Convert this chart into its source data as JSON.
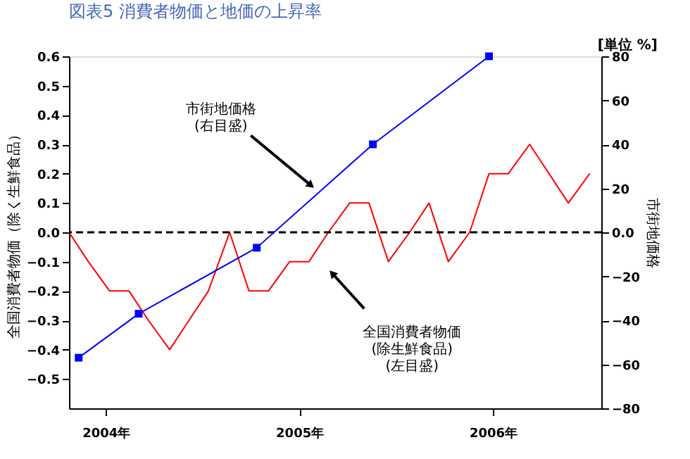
{
  "chart_data": {
    "type": "line",
    "title": "図表5 消費者物価と地価の上昇率",
    "ylabel": "全国消費者物価（除く生鮮食品）",
    "y2label": "市街地価格",
    "xlim": [
      2003.81,
      2006.56
    ],
    "xticks": [
      {
        "value": 2004,
        "label": "2004年"
      },
      {
        "value": 2005,
        "label": "2005年"
      },
      {
        "value": 2006,
        "label": "2006年"
      }
    ],
    "ylim": [
      -0.6,
      0.6
    ],
    "yticks": [
      -0.5,
      -0.4,
      -0.3,
      -0.2,
      -0.1,
      {
        "value": 0,
        "label": "0.0"
      },
      0.1,
      0.2,
      0.3,
      0.4,
      0.5,
      0.6
    ],
    "y2lim": [
      -80,
      80
    ],
    "y2ticks": [
      -80,
      -60,
      -40,
      -20,
      {
        "value": 0,
        "label": "0.0"
      },
      20,
      40,
      60,
      80
    ],
    "grid": false,
    "series": [
      {
        "color": "#ff0000",
        "marker": "none",
        "x": [
          2003.81,
          2003.91,
          2004.02,
          2004.12,
          2004.22,
          2004.33,
          2004.43,
          2004.53,
          2004.64,
          2004.74,
          2004.84,
          2004.95,
          2005.05,
          2005.15,
          2005.26,
          2005.36,
          2005.46,
          2005.57,
          2005.67,
          2005.77,
          2005.88,
          2005.98,
          2006.08,
          2006.19,
          2006.29,
          2006.39,
          2006.5
        ],
        "values": [
          0.0,
          -0.1,
          -0.2,
          -0.2,
          -0.3,
          -0.4,
          -0.3,
          -0.2,
          0.0,
          -0.2,
          -0.2,
          -0.1,
          -0.1,
          0.0,
          0.1,
          0.1,
          -0.1,
          0.0,
          0.1,
          -0.1,
          0.0,
          0.2,
          0.2,
          0.3,
          0.2,
          0.1,
          0.2
        ]
      },
      {
        "color": "#0000ff",
        "marker": "square",
        "axis": "y2",
        "x": [
          2003.86,
          2004.17,
          2004.78,
          2005.38,
          2005.98
        ],
        "values": [
          -57,
          -37,
          -7,
          40,
          80
        ]
      }
    ],
    "ref_lines": [
      {
        "axis": "y",
        "value": 0,
        "line_style": "dashed",
        "color": "#000000"
      }
    ],
    "annotations": [
      "[単位 %]",
      {
        "text": "市街地価格\n(右目盛)",
        "x": 2005.06,
        "y": 0.16
      },
      {
        "text": "全国消費者物価\n(除生鮮食品)\n　　(左目盛)",
        "x": 2005.17,
        "y": -0.14
      }
    ]
  }
}
